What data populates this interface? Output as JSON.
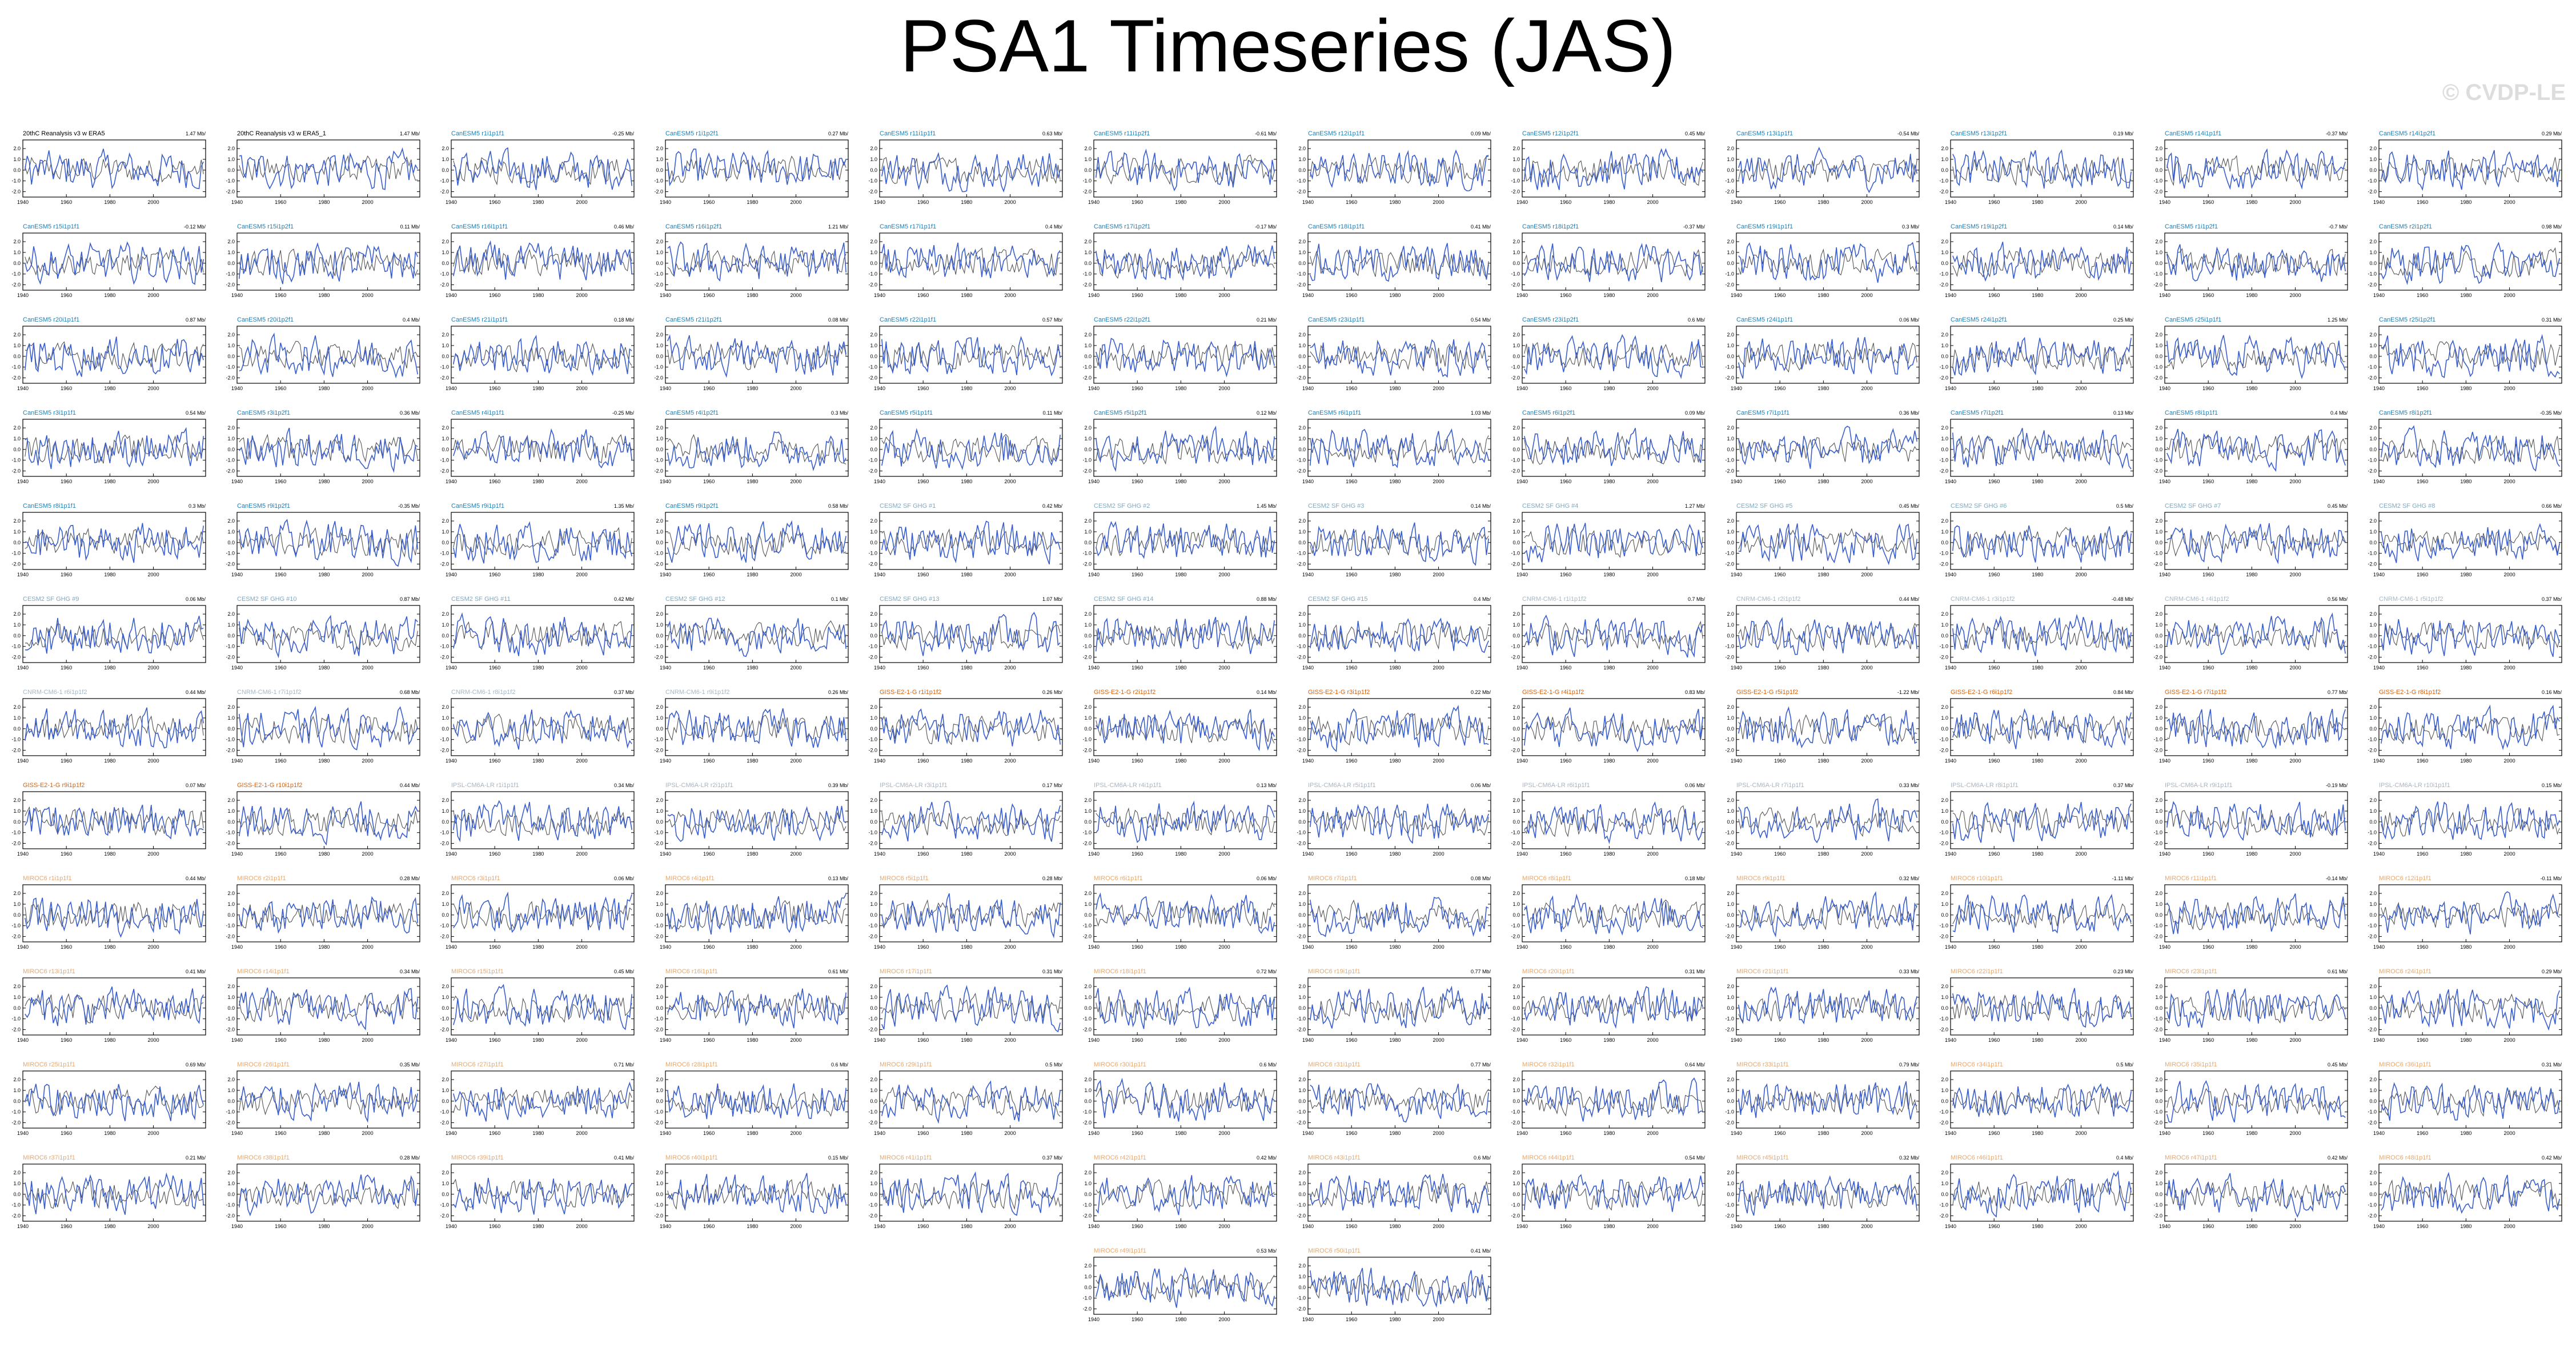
{
  "title": "PSA1 Timeseries (JAS)",
  "watermark": "© CVDP-LE",
  "colors": {
    "simulated_line": "#3a5fcd",
    "observed_line": "#555555",
    "axis": "#000000",
    "reanalysis_title": "#000000"
  },
  "chart_data": {
    "type": "line",
    "layout": "small-multiples",
    "grid_columns": 12,
    "grid_rows": 13,
    "x_ticks": [
      1940,
      1960,
      1980,
      2000
    ],
    "y_ticks": [
      2.0,
      1.0,
      0.0,
      -1.0,
      -2.0
    ],
    "xlim": [
      1940,
      2024
    ],
    "ylim": [
      -2.5,
      2.8
    ],
    "panel_titles": [
      "20thC Reanalysis v3 w ERA5",
      "20thC Reanalysis v3 w ERA5_1",
      "CanESM5 r1i1p1f1",
      "CanESM5 r1i1p2f1",
      "CanESM5 r11i1p1f1",
      "CanESM5 r11i1p2f1",
      "CanESM5 r12i1p1f1",
      "CanESM5 r12i1p2f1",
      "CanESM5 r13i1p1f1",
      "CanESM5 r13i1p2f1",
      "CanESM5 r14i1p1f1",
      "CanESM5 r14i1p2f1",
      "CanESM5 r15i1p1f1",
      "CanESM5 r15i1p2f1",
      "CanESM5 r16i1p1f1",
      "CanESM5 r16i1p2f1",
      "CanESM5 r17i1p1f1",
      "CanESM5 r17i1p2f1",
      "CanESM5 r18i1p1f1",
      "CanESM5 r18i1p2f1",
      "CanESM5 r19i1p1f1",
      "CanESM5 r19i1p2f1",
      "CanESM5 r1i1p2f1",
      "CanESM5 r2i1p2f1",
      "CanESM5 r20i1p1f1",
      "CanESM5 r20i1p2f1",
      "CanESM5 r21i1p1f1",
      "CanESM5 r21i1p2f1",
      "CanESM5 r22i1p1f1",
      "CanESM5 r22i1p2f1",
      "CanESM5 r23i1p1f1",
      "CanESM5 r23i1p2f1",
      "CanESM5 r24i1p1f1",
      "CanESM5 r24i1p2f1",
      "CanESM5 r25i1p1f1",
      "CanESM5 r25i1p2f1",
      "CanESM5 r3i1p1f1",
      "CanESM5 r3i1p2f1",
      "CanESM5 r4i1p1f1",
      "CanESM5 r4i1p2f1",
      "CanESM5 r5i1p1f1",
      "CanESM5 r5i1p2f1",
      "CanESM5 r6i1p1f1",
      "CanESM5 r6i1p2f1",
      "CanESM5 r7i1p1f1",
      "CanESM5 r7i1p2f1",
      "CanESM5 r8i1p1f1",
      "CanESM5 r8i1p2f1",
      "CanESM5 r8i1p1f1",
      "CanESM5 r9i1p2f1",
      "CanESM5 r9i1p1f1",
      "CanESM5 r9i1p2f1",
      "CESM2 SF GHG #1",
      "CESM2 SF GHG #2",
      "CESM2 SF GHG #3",
      "CESM2 SF GHG #4",
      "CESM2 SF GHG #5",
      "CESM2 SF GHG #6",
      "CESM2 SF GHG #7",
      "CESM2 SF GHG #8",
      "CESM2 SF GHG #9",
      "CESM2 SF GHG #10",
      "CESM2 SF GHG #11",
      "CESM2 SF GHG #12",
      "CESM2 SF GHG #13",
      "CESM2 SF GHG #14",
      "CESM2 SF GHG #15",
      "CNRM-CM6-1 r1i1p1f2",
      "CNRM-CM6-1 r2i1p1f2",
      "CNRM-CM6-1 r3i1p1f2",
      "CNRM-CM6-1 r4i1p1f2",
      "CNRM-CM6-1 r5i1p1f2",
      "CNRM-CM6-1 r6i1p1f2",
      "CNRM-CM6-1 r7i1p1f2",
      "CNRM-CM6-1 r8i1p1f2",
      "CNRM-CM6-1 r9i1p1f2",
      "GISS-E2-1-G r1i1p1f2",
      "GISS-E2-1-G r2i1p1f2",
      "GISS-E2-1-G r3i1p1f2",
      "GISS-E2-1-G r4i1p1f2",
      "GISS-E2-1-G r5i1p1f2",
      "GISS-E2-1-G r6i1p1f2",
      "GISS-E2-1-G r7i1p1f2",
      "GISS-E2-1-G r8i1p1f2",
      "GISS-E2-1-G r9i1p1f2",
      "GISS-E2-1-G r10i1p1f2",
      "IPSL-CM6A-LR r1i1p1f1",
      "IPSL-CM6A-LR r2i1p1f1",
      "IPSL-CM6A-LR r3i1p1f1",
      "IPSL-CM6A-LR r4i1p1f1",
      "IPSL-CM6A-LR r5i1p1f1",
      "IPSL-CM6A-LR r6i1p1f1",
      "IPSL-CM6A-LR r7i1p1f1",
      "IPSL-CM6A-LR r8i1p1f1",
      "IPSL-CM6A-LR r9i1p1f1",
      "IPSL-CM6A-LR r10i1p1f1",
      "MIROC6 r1i1p1f1",
      "MIROC6 r2i1p1f1",
      "MIROC6 r3i1p1f1",
      "MIROC6 r4i1p1f1",
      "MIROC6 r5i1p1f1",
      "MIROC6 r6i1p1f1",
      "MIROC6 r7i1p1f1",
      "MIROC6 r8i1p1f1",
      "MIROC6 r9i1p1f1",
      "MIROC6 r10i1p1f1",
      "MIROC6 r11i1p1f1",
      "MIROC6 r12i1p1f1",
      "MIROC6 r13i1p1f1",
      "MIROC6 r14i1p1f1",
      "MIROC6 r15i1p1f1",
      "MIROC6 r16i1p1f1",
      "MIROC6 r17i1p1f1",
      "MIROC6 r18i1p1f1",
      "MIROC6 r19i1p1f1",
      "MIROC6 r20i1p1f1",
      "MIROC6 r21i1p1f1",
      "MIROC6 r22i1p1f1",
      "MIROC6 r23i1p1f1",
      "MIROC6 r24i1p1f1",
      "MIROC6 r25i1p1f1",
      "MIROC6 r26i1p1f1",
      "MIROC6 r27i1p1f1",
      "MIROC6 r28i1p1f1",
      "MIROC6 r29i1p1f1",
      "MIROC6 r30i1p1f1",
      "MIROC6 r31i1p1f1",
      "MIROC6 r32i1p1f1",
      "MIROC6 r33i1p1f1",
      "MIROC6 r34i1p1f1",
      "MIROC6 r35i1p1f1",
      "MIROC6 r36i1p1f1",
      "MIROC6 r37i1p1f1",
      "MIROC6 r38i1p1f1",
      "MIROC6 r39i1p1f1",
      "MIROC6 r40i1p1f1",
      "MIROC6 r41i1p1f1",
      "MIROC6 r42i1p1f1",
      "MIROC6 r43i1p1f1",
      "MIROC6 r44i1p1f1",
      "MIROC6 r45i1p1f1",
      "MIROC6 r46i1p1f1",
      "MIROC6 r47i1p1f1",
      "MIROC6 r48i1p1f1",
      "MIROC6 r49i1p1f1",
      "MIROC6 r50i1p1f1"
    ],
    "panel_stats": [
      "1.47 Mb/",
      "1.47 Mb/",
      "-0.25 Mb/",
      "0.27 Mb/",
      "0.63 Mb/",
      "-0.61 Mb/",
      "0.09 Mb/",
      "0.45 Mb/",
      "-0.54 Mb/",
      "0.19 Mb/",
      "-0.37 Mb/",
      "0.29 Mb/",
      "-0.12 Mb/",
      "0.11 Mb/",
      "0.46 Mb/",
      "1.21 Mb/",
      "0.4 Mb/",
      "-0.17 Mb/",
      "0.41 Mb/",
      "-0.37 Mb/",
      "0.3 Mb/",
      "0.14 Mb/",
      "-0.7 Mb/",
      "0.98 Mb/",
      "0.87 Mb/",
      "0.4 Mb/",
      "0.18 Mb/",
      "0.08 Mb/",
      "0.57 Mb/",
      "0.21 Mb/",
      "0.54 Mb/",
      "0.6 Mb/",
      "0.06 Mb/",
      "0.25 Mb/",
      "1.25 Mb/",
      "0.31 Mb/",
      "0.54 Mb/",
      "0.36 Mb/",
      "-0.25 Mb/",
      "0.3 Mb/",
      "0.11 Mb/",
      "0.12 Mb/",
      "1.03 Mb/",
      "0.09 Mb/",
      "0.36 Mb/",
      "0.13 Mb/",
      "0.4 Mb/",
      "-0.35 Mb/",
      "0.3 Mb/",
      "-0.35 Mb/",
      "1.35 Mb/",
      "0.58 Mb/",
      "0.42 Mb/",
      "1.45 Mb/",
      "0.14 Mb/",
      "1.27 Mb/",
      "0.45 Mb/",
      "0.5 Mb/",
      "0.45 Mb/",
      "0.66 Mb/",
      "0.06 Mb/",
      "0.87 Mb/",
      "0.42 Mb/",
      "0.1 Mb/",
      "1.07 Mb/",
      "0.88 Mb/",
      "0.4 Mb/",
      "0.7 Mb/",
      "0.44 Mb/",
      "-0.48 Mb/",
      "0.56 Mb/",
      "0.37 Mb/",
      "0.44 Mb/",
      "0.68 Mb/",
      "0.37 Mb/",
      "0.26 Mb/",
      "0.26 Mb/",
      "0.14 Mb/",
      "0.22 Mb/",
      "0.83 Mb/",
      "-1.22 Mb/",
      "0.84 Mb/",
      "0.77 Mb/",
      "0.16 Mb/",
      "0.07 Mb/",
      "0.44 Mb/",
      "0.34 Mb/",
      "0.39 Mb/",
      "0.17 Mb/",
      "0.13 Mb/",
      "0.06 Mb/",
      "0.06 Mb/",
      "0.33 Mb/",
      "0.37 Mb/",
      "-0.19 Mb/",
      "0.15 Mb/",
      "0.44 Mb/",
      "0.28 Mb/",
      "0.06 Mb/",
      "0.13 Mb/",
      "0.28 Mb/",
      "0.06 Mb/",
      "0.08 Mb/",
      "0.18 Mb/",
      "0.32 Mb/",
      "-1.11 Mb/",
      "-0.14 Mb/",
      "-0.11 Mb/",
      "0.41 Mb/",
      "0.34 Mb/",
      "0.45 Mb/",
      "0.61 Mb/",
      "0.31 Mb/",
      "0.72 Mb/",
      "0.77 Mb/",
      "0.31 Mb/",
      "0.33 Mb/",
      "0.23 Mb/",
      "0.61 Mb/",
      "0.29 Mb/",
      "0.69 Mb/",
      "0.35 Mb/",
      "0.71 Mb/",
      "0.6 Mb/",
      "0.5 Mb/",
      "0.6 Mb/",
      "0.77 Mb/",
      "0.64 Mb/",
      "0.79 Mb/",
      "0.5 Mb/",
      "0.45 Mb/",
      "0.31 Mb/",
      "0.21 Mb/",
      "0.28 Mb/",
      "0.41 Mb/",
      "0.15 Mb/",
      "0.37 Mb/",
      "0.42 Mb/",
      "0.6 Mb/",
      "0.54 Mb/",
      "0.32 Mb/",
      "0.4 Mb/",
      "0.42 Mb/",
      "0.42 Mb/",
      "0.53 Mb/",
      "0.41 Mb/"
    ],
    "title_colors": {
      "Reanalysis": "#000000",
      "CanESM5": "#1f7fb4",
      "CESM2": "#7fa8bf",
      "CNRM-CM6-1": "#a8b8c4",
      "GISS-E2-1-G": "#d4620f",
      "IPSL-CM6A-LR": "#a8b4c0",
      "MIROC6": "#e6a870"
    },
    "series_count_per_panel": 2,
    "series_colors": [
      "#3a5fcd",
      "#555555"
    ]
  }
}
